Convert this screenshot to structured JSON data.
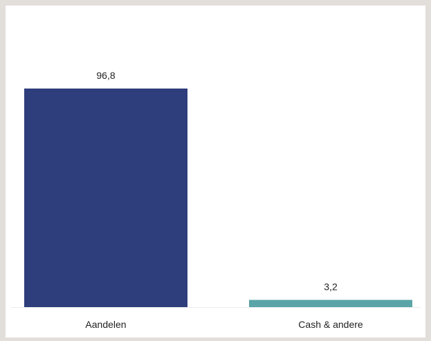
{
  "chart_data": {
    "type": "bar",
    "categories": [
      "Aandelen",
      "Cash & andere"
    ],
    "values": [
      96.8,
      3.2
    ],
    "value_labels": [
      "96,8",
      "3,2"
    ],
    "colors": [
      "#2e3d7c",
      "#5ba4a8"
    ],
    "ylim": [
      0,
      100
    ],
    "grid": false,
    "legend": "none",
    "title": "",
    "xlabel": "",
    "ylabel": ""
  }
}
